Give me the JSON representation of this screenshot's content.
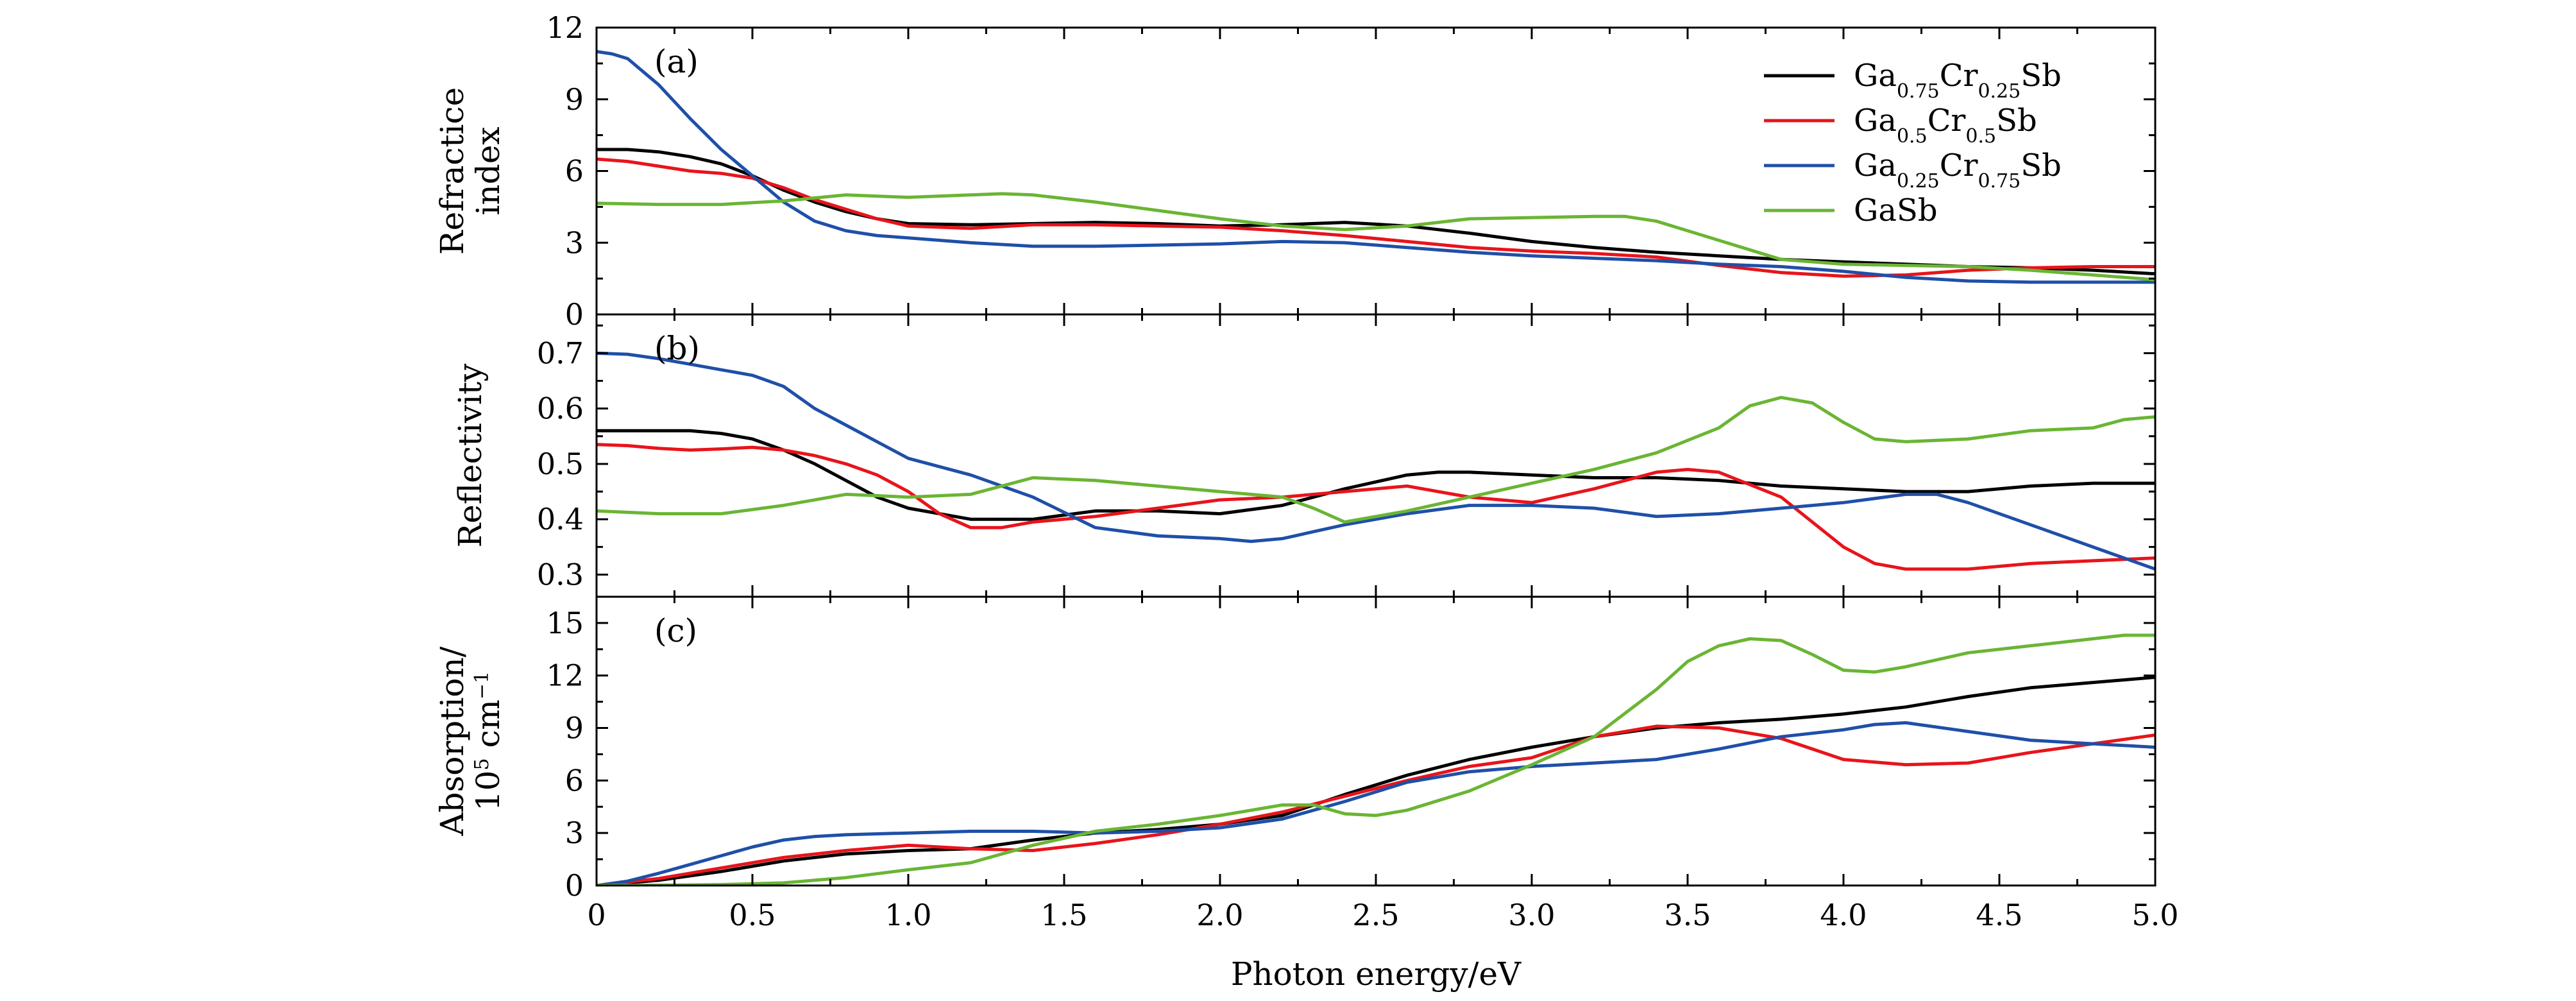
{
  "chart_data": {
    "type": "line",
    "xlabel": "Photon energy/eV",
    "xlim": [
      0,
      5.0
    ],
    "x_ticks": [
      "0",
      "0.5",
      "1.0",
      "1.5",
      "2.0",
      "2.5",
      "3.0",
      "3.5",
      "4.0",
      "4.5",
      "5.0"
    ],
    "legend": {
      "placement": "top-right",
      "entries": [
        {
          "parts": [
            [
              "Ga",
              ""
            ],
            [
              "0.75",
              "sub"
            ],
            [
              "Cr",
              ""
            ],
            [
              "0.25",
              "sub"
            ],
            [
              "Sb",
              ""
            ]
          ],
          "color": "#000000"
        },
        {
          "parts": [
            [
              "Ga",
              ""
            ],
            [
              "0.5",
              "sub"
            ],
            [
              "Cr",
              ""
            ],
            [
              "0.5",
              "sub"
            ],
            [
              "Sb",
              ""
            ]
          ],
          "color": "#e8141b"
        },
        {
          "parts": [
            [
              "Ga",
              ""
            ],
            [
              "0.25",
              "sub"
            ],
            [
              "Cr",
              ""
            ],
            [
              "0.75",
              "sub"
            ],
            [
              "Sb",
              ""
            ]
          ],
          "color": "#1f4fa8"
        },
        {
          "parts": [
            [
              "GaSb",
              ""
            ]
          ],
          "color": "#6ab534"
        }
      ]
    },
    "panels": [
      {
        "tag": "(a)",
        "ylabel_lines": [
          "Refractice",
          "index"
        ],
        "ylim": [
          0,
          12
        ],
        "y_ticks": [
          0,
          3,
          6,
          9,
          12
        ],
        "y_tick_labels": [
          "0",
          "3",
          "6",
          "9",
          "12"
        ],
        "series": [
          {
            "color": "#000000",
            "x": [
              0,
              0.1,
              0.2,
              0.3,
              0.4,
              0.5,
              0.6,
              0.7,
              0.8,
              0.9,
              1.0,
              1.2,
              1.4,
              1.6,
              1.8,
              2.0,
              2.2,
              2.4,
              2.6,
              2.8,
              3.0,
              3.2,
              3.4,
              3.6,
              3.8,
              4.0,
              4.2,
              4.4,
              4.6,
              4.8,
              5.0
            ],
            "y": [
              6.9,
              6.9,
              6.8,
              6.6,
              6.3,
              5.8,
              5.2,
              4.7,
              4.3,
              4.0,
              3.8,
              3.75,
              3.8,
              3.85,
              3.8,
              3.7,
              3.75,
              3.85,
              3.7,
              3.4,
              3.05,
              2.8,
              2.6,
              2.45,
              2.3,
              2.2,
              2.1,
              2.0,
              1.95,
              1.85,
              1.7
            ]
          },
          {
            "color": "#e8141b",
            "x": [
              0,
              0.1,
              0.2,
              0.3,
              0.4,
              0.5,
              0.6,
              0.7,
              0.8,
              0.9,
              1.0,
              1.2,
              1.4,
              1.6,
              1.8,
              2.0,
              2.2,
              2.4,
              2.6,
              2.8,
              3.0,
              3.2,
              3.4,
              3.6,
              3.8,
              4.0,
              4.2,
              4.4,
              4.6,
              4.8,
              5.0
            ],
            "y": [
              6.5,
              6.4,
              6.2,
              6.0,
              5.9,
              5.7,
              5.3,
              4.8,
              4.4,
              4.0,
              3.7,
              3.6,
              3.75,
              3.75,
              3.7,
              3.65,
              3.5,
              3.3,
              3.05,
              2.8,
              2.65,
              2.55,
              2.4,
              2.05,
              1.75,
              1.6,
              1.65,
              1.85,
              1.95,
              2.0,
              2.0
            ]
          },
          {
            "color": "#1f4fa8",
            "x": [
              0,
              0.05,
              0.1,
              0.2,
              0.3,
              0.4,
              0.5,
              0.6,
              0.7,
              0.8,
              0.9,
              1.0,
              1.2,
              1.4,
              1.6,
              1.8,
              2.0,
              2.2,
              2.4,
              2.6,
              2.8,
              3.0,
              3.2,
              3.4,
              3.6,
              3.8,
              4.0,
              4.2,
              4.4,
              4.6,
              4.8,
              5.0
            ],
            "y": [
              11.0,
              10.9,
              10.7,
              9.6,
              8.2,
              6.9,
              5.8,
              4.7,
              3.9,
              3.5,
              3.3,
              3.2,
              3.0,
              2.85,
              2.85,
              2.9,
              2.95,
              3.05,
              3.0,
              2.8,
              2.6,
              2.45,
              2.35,
              2.25,
              2.1,
              2.0,
              1.8,
              1.55,
              1.4,
              1.35,
              1.35,
              1.35
            ]
          },
          {
            "color": "#6ab534",
            "x": [
              0,
              0.2,
              0.4,
              0.6,
              0.8,
              1.0,
              1.2,
              1.3,
              1.4,
              1.6,
              1.8,
              2.0,
              2.2,
              2.4,
              2.6,
              2.8,
              3.0,
              3.2,
              3.3,
              3.4,
              3.6,
              3.8,
              4.0,
              4.2,
              4.4,
              4.6,
              4.8,
              5.0
            ],
            "y": [
              4.65,
              4.6,
              4.6,
              4.75,
              5.0,
              4.9,
              5.0,
              5.05,
              5.0,
              4.7,
              4.35,
              4.0,
              3.7,
              3.55,
              3.7,
              4.0,
              4.05,
              4.1,
              4.1,
              3.9,
              3.1,
              2.3,
              2.1,
              2.05,
              2.0,
              1.85,
              1.65,
              1.45
            ]
          }
        ]
      },
      {
        "tag": "(b)",
        "ylabel_lines": [
          "Reflectivity"
        ],
        "ylim": [
          0.26,
          0.77
        ],
        "y_ticks": [
          0.3,
          0.4,
          0.5,
          0.6,
          0.7
        ],
        "y_tick_labels": [
          "0.3",
          "0.4",
          "0.5",
          "0.6",
          "0.7"
        ],
        "series": [
          {
            "color": "#000000",
            "x": [
              0,
              0.1,
              0.2,
              0.3,
              0.4,
              0.5,
              0.6,
              0.7,
              0.8,
              0.9,
              1.0,
              1.2,
              1.4,
              1.6,
              1.8,
              2.0,
              2.2,
              2.4,
              2.6,
              2.7,
              2.8,
              3.0,
              3.2,
              3.4,
              3.6,
              3.8,
              4.0,
              4.2,
              4.4,
              4.6,
              4.8,
              5.0
            ],
            "y": [
              0.56,
              0.56,
              0.56,
              0.56,
              0.555,
              0.545,
              0.525,
              0.5,
              0.47,
              0.44,
              0.42,
              0.4,
              0.4,
              0.415,
              0.415,
              0.41,
              0.425,
              0.455,
              0.48,
              0.485,
              0.485,
              0.48,
              0.475,
              0.475,
              0.47,
              0.46,
              0.455,
              0.45,
              0.45,
              0.46,
              0.465,
              0.465
            ]
          },
          {
            "color": "#e8141b",
            "x": [
              0,
              0.1,
              0.2,
              0.3,
              0.4,
              0.5,
              0.6,
              0.7,
              0.8,
              0.9,
              1.0,
              1.1,
              1.2,
              1.3,
              1.4,
              1.6,
              1.8,
              2.0,
              2.2,
              2.4,
              2.6,
              2.8,
              3.0,
              3.2,
              3.4,
              3.5,
              3.6,
              3.8,
              4.0,
              4.1,
              4.2,
              4.4,
              4.6,
              4.8,
              5.0
            ],
            "y": [
              0.535,
              0.533,
              0.528,
              0.525,
              0.527,
              0.53,
              0.525,
              0.515,
              0.5,
              0.48,
              0.45,
              0.41,
              0.385,
              0.385,
              0.395,
              0.405,
              0.42,
              0.435,
              0.44,
              0.45,
              0.46,
              0.44,
              0.43,
              0.455,
              0.485,
              0.49,
              0.485,
              0.44,
              0.35,
              0.32,
              0.31,
              0.31,
              0.32,
              0.325,
              0.33
            ]
          },
          {
            "color": "#1f4fa8",
            "x": [
              0,
              0.1,
              0.2,
              0.3,
              0.4,
              0.5,
              0.6,
              0.7,
              0.8,
              0.9,
              1.0,
              1.2,
              1.4,
              1.6,
              1.8,
              2.0,
              2.1,
              2.2,
              2.4,
              2.6,
              2.8,
              3.0,
              3.2,
              3.4,
              3.6,
              3.8,
              4.0,
              4.2,
              4.3,
              4.4,
              4.6,
              4.8,
              5.0
            ],
            "y": [
              0.7,
              0.698,
              0.69,
              0.68,
              0.67,
              0.66,
              0.64,
              0.6,
              0.57,
              0.54,
              0.51,
              0.48,
              0.44,
              0.385,
              0.37,
              0.365,
              0.36,
              0.365,
              0.39,
              0.41,
              0.425,
              0.425,
              0.42,
              0.405,
              0.41,
              0.42,
              0.43,
              0.445,
              0.445,
              0.43,
              0.39,
              0.35,
              0.31
            ]
          },
          {
            "color": "#6ab534",
            "x": [
              0,
              0.2,
              0.4,
              0.6,
              0.8,
              1.0,
              1.2,
              1.4,
              1.6,
              1.8,
              2.0,
              2.2,
              2.3,
              2.4,
              2.6,
              2.8,
              3.0,
              3.2,
              3.4,
              3.6,
              3.7,
              3.8,
              3.9,
              4.0,
              4.1,
              4.2,
              4.4,
              4.6,
              4.8,
              4.9,
              5.0
            ],
            "y": [
              0.415,
              0.41,
              0.41,
              0.425,
              0.445,
              0.44,
              0.445,
              0.475,
              0.47,
              0.46,
              0.45,
              0.44,
              0.42,
              0.395,
              0.415,
              0.44,
              0.465,
              0.49,
              0.52,
              0.565,
              0.605,
              0.62,
              0.61,
              0.575,
              0.545,
              0.54,
              0.545,
              0.56,
              0.565,
              0.58,
              0.585
            ]
          }
        ]
      },
      {
        "tag": "(c)",
        "ylabel_lines": [
          "Absorption/",
          "10^5 cm^-1"
        ],
        "ylim": [
          0,
          16.5
        ],
        "y_ticks": [
          0,
          3,
          6,
          9,
          12,
          15
        ],
        "y_tick_labels": [
          "0",
          "3",
          "6",
          "9",
          "12",
          "15"
        ],
        "series": [
          {
            "color": "#000000",
            "x": [
              0,
              0.2,
              0.4,
              0.6,
              0.8,
              1.0,
              1.2,
              1.4,
              1.6,
              1.8,
              2.0,
              2.2,
              2.4,
              2.6,
              2.8,
              3.0,
              3.2,
              3.4,
              3.6,
              3.8,
              4.0,
              4.2,
              4.4,
              4.6,
              4.8,
              5.0
            ],
            "y": [
              0,
              0.3,
              0.8,
              1.4,
              1.8,
              2.0,
              2.1,
              2.6,
              3.0,
              3.2,
              3.5,
              4.0,
              5.2,
              6.3,
              7.2,
              7.9,
              8.5,
              9.0,
              9.3,
              9.5,
              9.8,
              10.2,
              10.8,
              11.3,
              11.6,
              11.9
            ]
          },
          {
            "color": "#e8141b",
            "x": [
              0,
              0.2,
              0.4,
              0.6,
              0.8,
              1.0,
              1.2,
              1.4,
              1.6,
              1.8,
              2.0,
              2.2,
              2.4,
              2.6,
              2.8,
              3.0,
              3.2,
              3.4,
              3.6,
              3.8,
              4.0,
              4.2,
              4.4,
              4.6,
              4.8,
              5.0
            ],
            "y": [
              0,
              0.4,
              1.0,
              1.6,
              2.0,
              2.3,
              2.1,
              2.0,
              2.4,
              2.9,
              3.5,
              4.2,
              5.1,
              6.0,
              6.8,
              7.3,
              8.5,
              9.1,
              9.0,
              8.4,
              7.2,
              6.9,
              7.0,
              7.6,
              8.1,
              8.6
            ]
          },
          {
            "color": "#1f4fa8",
            "x": [
              0,
              0.1,
              0.2,
              0.3,
              0.4,
              0.5,
              0.6,
              0.7,
              0.8,
              0.9,
              1.0,
              1.2,
              1.4,
              1.6,
              1.8,
              2.0,
              2.2,
              2.4,
              2.6,
              2.8,
              3.0,
              3.2,
              3.4,
              3.6,
              3.8,
              4.0,
              4.1,
              4.2,
              4.4,
              4.6,
              4.8,
              5.0
            ],
            "y": [
              0,
              0.25,
              0.7,
              1.2,
              1.7,
              2.2,
              2.6,
              2.8,
              2.9,
              2.95,
              3.0,
              3.1,
              3.1,
              3.0,
              3.1,
              3.3,
              3.8,
              4.8,
              5.9,
              6.5,
              6.8,
              7.0,
              7.2,
              7.8,
              8.5,
              8.9,
              9.2,
              9.3,
              8.8,
              8.3,
              8.1,
              7.9
            ]
          },
          {
            "color": "#6ab534",
            "x": [
              0,
              0.2,
              0.4,
              0.6,
              0.8,
              1.0,
              1.2,
              1.4,
              1.6,
              1.8,
              2.0,
              2.2,
              2.3,
              2.4,
              2.5,
              2.6,
              2.8,
              3.0,
              3.2,
              3.4,
              3.5,
              3.6,
              3.7,
              3.8,
              3.9,
              4.0,
              4.1,
              4.2,
              4.4,
              4.6,
              4.8,
              4.9,
              5.0
            ],
            "y": [
              0,
              0.02,
              0.05,
              0.15,
              0.45,
              0.9,
              1.3,
              2.3,
              3.1,
              3.5,
              4.0,
              4.6,
              4.6,
              4.1,
              4.0,
              4.3,
              5.4,
              6.9,
              8.5,
              11.2,
              12.8,
              13.7,
              14.1,
              14.0,
              13.2,
              12.3,
              12.2,
              12.5,
              13.3,
              13.7,
              14.1,
              14.3,
              14.3
            ]
          }
        ]
      }
    ]
  }
}
